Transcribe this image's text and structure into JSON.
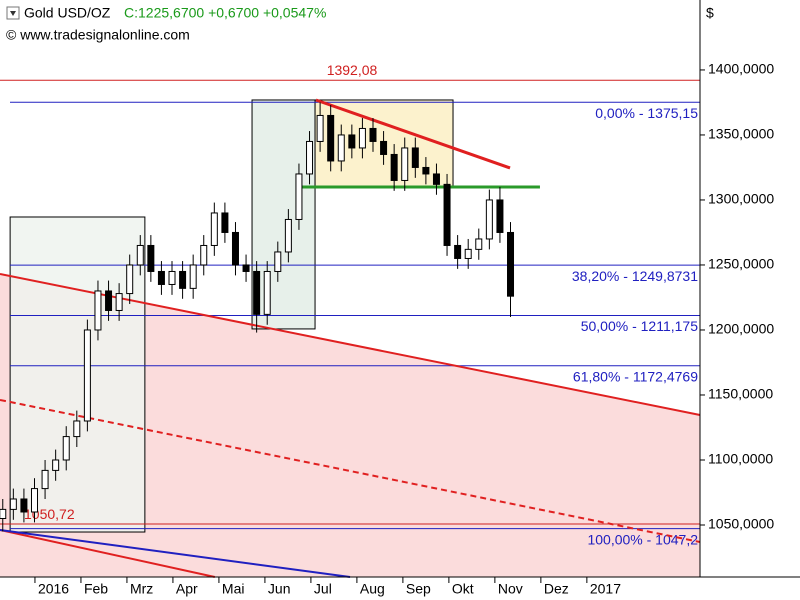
{
  "chart_data": {
    "type": "candlestick",
    "title": "Gold USD/OZ",
    "quote": "C:1225,6700 +0,6700 +0,0547%",
    "source": "© www.tradesignalonline.com",
    "y_unit": "$",
    "xlim": [
      -0.76,
      14.46
    ],
    "ylim": [
      1010,
      1453.8
    ],
    "xticks": [
      {
        "value": 0,
        "label": "2016"
      },
      {
        "value": 1,
        "label": "Feb"
      },
      {
        "value": 2,
        "label": "Mrz"
      },
      {
        "value": 3,
        "label": "Apr"
      },
      {
        "value": 4,
        "label": "Mai"
      },
      {
        "value": 5,
        "label": "Jun"
      },
      {
        "value": 6,
        "label": "Jul"
      },
      {
        "value": 7,
        "label": "Aug"
      },
      {
        "value": 8,
        "label": "Sep"
      },
      {
        "value": 9,
        "label": "Okt"
      },
      {
        "value": 10,
        "label": "Nov"
      },
      {
        "value": 11,
        "label": "Dez"
      },
      {
        "value": 12,
        "label": "2017"
      }
    ],
    "yticks": [
      {
        "value": 1050,
        "label": "1050,0000"
      },
      {
        "value": 1100,
        "label": "1100,0000"
      },
      {
        "value": 1150,
        "label": "1150,0000"
      },
      {
        "value": 1200,
        "label": "1200,0000"
      },
      {
        "value": 1250,
        "label": "1250,0000"
      },
      {
        "value": 1300,
        "label": "1300,0000"
      },
      {
        "value": 1350,
        "label": "1350,0000"
      },
      {
        "value": 1400,
        "label": "1400,0000"
      }
    ],
    "up_color": "#ffffff",
    "down_color": "#000000",
    "x": [
      -0.7,
      -0.47,
      -0.24,
      -0.01,
      0.22,
      0.45,
      0.68,
      0.91,
      1.14,
      1.37,
      1.6,
      1.83,
      2.06,
      2.29,
      2.52,
      2.75,
      2.98,
      3.21,
      3.44,
      3.67,
      3.9,
      4.13,
      4.36,
      4.59,
      4.82,
      5.05,
      5.28,
      5.51,
      5.74,
      5.97,
      6.2,
      6.43,
      6.66,
      6.89,
      7.12,
      7.35,
      7.58,
      7.81,
      8.04,
      8.27,
      8.5,
      8.73,
      8.96,
      9.19,
      9.42,
      9.65,
      9.88,
      10.11,
      10.34
    ],
    "open": [
      1055,
      1062,
      1070,
      1060,
      1078,
      1092,
      1100,
      1118,
      1130,
      1200,
      1230,
      1215,
      1228,
      1250,
      1265,
      1245,
      1235,
      1245,
      1232,
      1250,
      1265,
      1290,
      1275,
      1250,
      1245,
      1212,
      1245,
      1260,
      1285,
      1320,
      1345,
      1365,
      1330,
      1350,
      1340,
      1355,
      1345,
      1335,
      1315,
      1340,
      1325,
      1320,
      1312,
      1265,
      1255,
      1262,
      1270,
      1300,
      1275
    ],
    "high": [
      1070,
      1078,
      1078,
      1086,
      1100,
      1108,
      1126,
      1138,
      1208,
      1238,
      1238,
      1236,
      1258,
      1273,
      1273,
      1253,
      1253,
      1253,
      1258,
      1273,
      1298,
      1298,
      1283,
      1258,
      1253,
      1253,
      1268,
      1293,
      1328,
      1353,
      1375,
      1373,
      1358,
      1358,
      1363,
      1363,
      1353,
      1343,
      1348,
      1348,
      1333,
      1328,
      1320,
      1273,
      1270,
      1278,
      1308,
      1310,
      1283
    ],
    "low": [
      1045,
      1054,
      1052,
      1052,
      1070,
      1084,
      1092,
      1110,
      1122,
      1192,
      1207,
      1207,
      1220,
      1242,
      1237,
      1227,
      1227,
      1224,
      1224,
      1242,
      1257,
      1267,
      1242,
      1237,
      1198,
      1204,
      1237,
      1252,
      1277,
      1312,
      1337,
      1322,
      1322,
      1332,
      1332,
      1337,
      1327,
      1307,
      1307,
      1317,
      1312,
      1304,
      1257,
      1247,
      1247,
      1254,
      1262,
      1267,
      1210
    ],
    "close": [
      1062,
      1070,
      1060,
      1078,
      1092,
      1100,
      1118,
      1130,
      1200,
      1230,
      1215,
      1228,
      1250,
      1265,
      1245,
      1235,
      1245,
      1232,
      1250,
      1265,
      1290,
      1275,
      1250,
      1245,
      1212,
      1245,
      1260,
      1285,
      1320,
      1345,
      1365,
      1330,
      1350,
      1340,
      1355,
      1345,
      1335,
      1315,
      1340,
      1325,
      1320,
      1312,
      1265,
      1255,
      1262,
      1270,
      1300,
      1275,
      1226
    ],
    "boxes": [
      {
        "x": [
          -0.54,
          2.39
        ],
        "y": [
          1044.6,
          1286.9
        ],
        "color": "#eef3ee"
      },
      {
        "x": [
          4.72,
          6.09
        ],
        "y": [
          1200.8,
          1376.9
        ],
        "color": "#e3ede6"
      },
      {
        "x": [
          6.09,
          9.09
        ],
        "y": [
          1310,
          1376.9
        ],
        "color": "#fbf0c4"
      }
    ],
    "trendlines": [
      {
        "x": [
          -0.76,
          14.46
        ],
        "y": [
          1243.1,
          1134.6
        ],
        "color": "#e02020",
        "fill": "#fbdcdc"
      },
      {
        "x": [
          -0.76,
          14.46
        ],
        "y": [
          1146.2,
          1036.9
        ],
        "color": "#e02020",
        "dash": true
      },
      {
        "x": [
          -0.76,
          3.91
        ],
        "y": [
          1046.2,
          1010
        ],
        "color": "#e02020"
      },
      {
        "x": [
          -0.76,
          6.85
        ],
        "y": [
          1046.2,
          1010
        ],
        "color": "#2020c0"
      },
      {
        "x": [
          6.11,
          10.33
        ],
        "y": [
          1376.9,
          1324.6
        ],
        "color": "#e02020",
        "width": 3
      },
      {
        "x": [
          5.76,
          10.98
        ],
        "y": [
          1310,
          1310
        ],
        "color": "#2a9a2a",
        "width": 3
      }
    ],
    "levels": [
      {
        "value": 1392.08,
        "label": "1392,08",
        "kind": "high",
        "color": "#d02020"
      },
      {
        "value": 1375.15,
        "label": "0,00% - 1375,15",
        "kind": "fib",
        "color": "#2020c0"
      },
      {
        "value": 1249.8731,
        "label": "38,20% - 1249,8731",
        "kind": "fib",
        "color": "#2020c0"
      },
      {
        "value": 1211.175,
        "label": "50,00% - 1211,175",
        "kind": "fib",
        "color": "#2020c0"
      },
      {
        "value": 1172.4769,
        "label": "61,80% - 1172,4769",
        "kind": "fib",
        "color": "#2020c0"
      },
      {
        "value": 1050.72,
        "label": "1050,72",
        "kind": "low",
        "color": "#d02020"
      },
      {
        "value": 1047.2,
        "label": "100,00% - 1047,2",
        "kind": "fib",
        "color": "#2020c0"
      }
    ]
  }
}
